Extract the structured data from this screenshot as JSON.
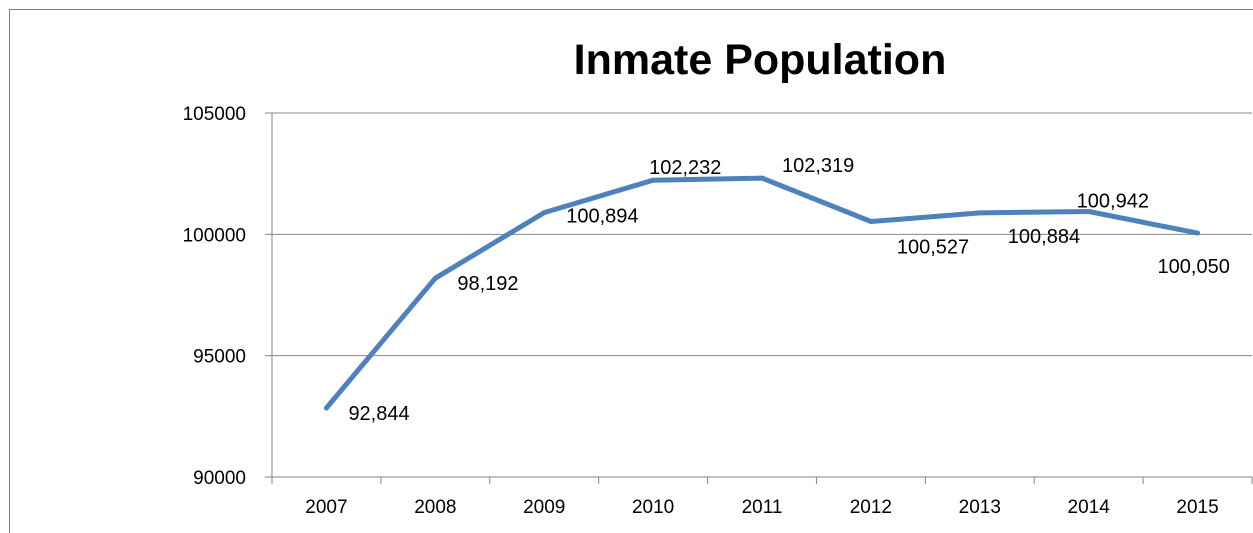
{
  "chart_data": {
    "type": "line",
    "title": "Inmate Population",
    "xlabel": "",
    "ylabel": "",
    "categories": [
      "2007",
      "2008",
      "2009",
      "2010",
      "2011",
      "2012",
      "2013",
      "2014",
      "2015"
    ],
    "series": [
      {
        "values": [
          92844,
          98192,
          100894,
          102232,
          102319,
          100527,
          100884,
          100942,
          100050
        ],
        "data_labels": [
          "92,844",
          "98,192",
          "100,894",
          "102,232",
          "102,319",
          "100,527",
          "100,884",
          "100,942",
          "100,050"
        ],
        "color": "#4f81bd"
      }
    ],
    "y_ticks": [
      "90000",
      "95000",
      "100000",
      "105000"
    ],
    "ylim": [
      90000,
      105000
    ],
    "grid": true,
    "legend": "none"
  }
}
